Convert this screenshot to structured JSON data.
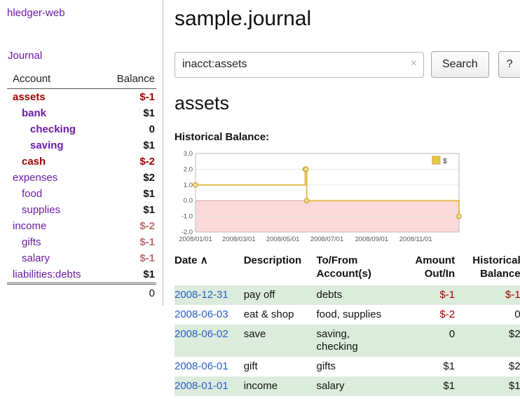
{
  "colors": {
    "purple": "#6a1ba8",
    "link_blue": "#2a5cc5",
    "negative_red": "#a40000",
    "rose": "#bb6a6a",
    "row_green": "#dcecdc"
  },
  "sidebar": {
    "app_title": "hledger-web",
    "nav": {
      "journal": "Journal"
    },
    "accounts": {
      "col_account": "Account",
      "col_balance": "Balance",
      "rows": [
        {
          "name": "assets",
          "balance": "$-1",
          "indent": 0,
          "bold": true,
          "name_color": "red",
          "balance_color": "red"
        },
        {
          "name": "bank",
          "balance": "$1",
          "indent": 1,
          "bold": true,
          "name_color": "purple",
          "balance_color": "black"
        },
        {
          "name": "checking",
          "balance": "0",
          "indent": 2,
          "bold": true,
          "name_color": "purple",
          "balance_color": "black"
        },
        {
          "name": "saving",
          "balance": "$1",
          "indent": 2,
          "bold": true,
          "name_color": "purple",
          "balance_color": "black"
        },
        {
          "name": "cash",
          "balance": "$-2",
          "indent": 1,
          "bold": true,
          "name_color": "red",
          "balance_color": "red"
        },
        {
          "name": "expenses",
          "balance": "$2",
          "indent": 0,
          "bold": false,
          "name_color": "purple",
          "balance_color": "black"
        },
        {
          "name": "food",
          "balance": "$1",
          "indent": 1,
          "bold": false,
          "name_color": "purple",
          "balance_color": "black"
        },
        {
          "name": "supplies",
          "balance": "$1",
          "indent": 1,
          "bold": false,
          "name_color": "purple",
          "balance_color": "black"
        },
        {
          "name": "income",
          "balance": "$-2",
          "indent": 0,
          "bold": false,
          "name_color": "purple",
          "balance_color": "rose"
        },
        {
          "name": "gifts",
          "balance": "$-1",
          "indent": 1,
          "bold": false,
          "name_color": "purple",
          "balance_color": "rose"
        },
        {
          "name": "salary",
          "balance": "$-1",
          "indent": 1,
          "bold": false,
          "name_color": "purple",
          "balance_color": "rose"
        },
        {
          "name": "liabilities:debts",
          "balance": "$1",
          "indent": 0,
          "bold": false,
          "name_color": "purple",
          "balance_color": "black"
        }
      ],
      "total": "0"
    }
  },
  "main": {
    "title": "sample.journal",
    "search": {
      "value": "inacct:assets",
      "clear_icon": "×",
      "button_label": "Search",
      "help_label": "?"
    },
    "account_heading": "assets",
    "section_label": "Historical Balance:"
  },
  "chart_data": {
    "type": "line",
    "step": true,
    "title": "Historical Balance of assets",
    "legend": [
      {
        "label": "$",
        "color": "#e8c84a"
      }
    ],
    "x": [
      "2008-01-01",
      "2008-06-01",
      "2008-06-02",
      "2008-06-03",
      "2008-12-31"
    ],
    "x_days": [
      0,
      152,
      153,
      154,
      365
    ],
    "values": [
      1,
      2,
      2,
      0,
      -1
    ],
    "x_tick_labels": [
      "2008/01/01",
      "2008/03/01",
      "2008/05/01",
      "2008/07/01",
      "2008/09/01",
      "2008/11/01"
    ],
    "x_tick_days": [
      0,
      60,
      121,
      182,
      244,
      305
    ],
    "x_range_days": [
      0,
      365
    ],
    "y_ticks": [
      "3.0",
      "2.0",
      "1.0",
      "0.0",
      "-1.0",
      "-2.0"
    ],
    "ylim": [
      -2,
      3
    ],
    "line_color": "#e2bd4f",
    "marker_fill": "#f4df9d",
    "marker_stroke": "#c9a22f",
    "negative_region_fill": "#fbd9d9",
    "zero_line_color": "#cfa0a0",
    "grid_color": "#e8e8e8",
    "border_color": "#bbbbbb"
  },
  "register": {
    "headers": {
      "date": "Date",
      "sort_indicator": "∧",
      "description": "Description",
      "tofrom_line1": "To/From",
      "tofrom_line2": "Account(s)",
      "amount_line1": "Amount",
      "amount_line2": "Out/In",
      "balance_line1": "Historical",
      "balance_line2": "Balance"
    },
    "rows": [
      {
        "date": "2008-12-31",
        "description": "pay off",
        "accounts": "debts",
        "amount": "$-1",
        "amount_neg": true,
        "balance": "$-1",
        "balance_neg": true,
        "shaded": true
      },
      {
        "date": "2008-06-03",
        "description": "eat & shop",
        "accounts": "food, supplies",
        "amount": "$-2",
        "amount_neg": true,
        "balance": "0",
        "balance_neg": false,
        "shaded": false
      },
      {
        "date": "2008-06-02",
        "description": "save",
        "accounts": "saving, checking",
        "amount": "0",
        "amount_neg": false,
        "balance": "$2",
        "balance_neg": false,
        "shaded": true
      },
      {
        "date": "2008-06-01",
        "description": "gift",
        "accounts": "gifts",
        "amount": "$1",
        "amount_neg": false,
        "balance": "$2",
        "balance_neg": false,
        "shaded": false
      },
      {
        "date": "2008-01-01",
        "description": "income",
        "accounts": "salary",
        "amount": "$1",
        "amount_neg": false,
        "balance": "$1",
        "balance_neg": false,
        "shaded": true
      }
    ]
  }
}
